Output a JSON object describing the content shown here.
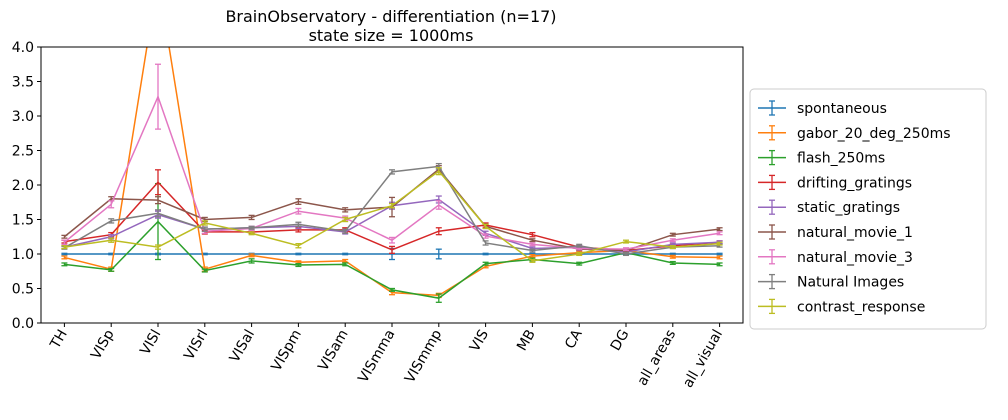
{
  "chart_data": {
    "type": "line",
    "title_line1": "BrainObservatory - differentiation (n=17)",
    "title_line2": "state size = 1000ms",
    "xlabel": "",
    "ylabel": "",
    "categories": [
      "TH",
      "VISp",
      "VISl",
      "VISrl",
      "VISal",
      "VISpm",
      "VISam",
      "VISmma",
      "VISmmp",
      "VIS",
      "MB",
      "CA",
      "DG",
      "all_areas",
      "all_visual"
    ],
    "ylim": [
      0,
      4
    ],
    "yticks": [
      "0.0",
      "0.5",
      "1.0",
      "1.5",
      "2.0",
      "2.5",
      "3.0",
      "3.5",
      "4.0"
    ],
    "grid": false,
    "legend_position": "right, outside",
    "series": [
      {
        "name": "spontaneous",
        "color": "#1f77b4",
        "values": [
          1.0,
          1.0,
          1.0,
          1.0,
          1.0,
          1.0,
          1.0,
          1.0,
          1.0,
          1.0,
          1.0,
          1.0,
          1.0,
          1.0,
          1.0
        ],
        "errors": [
          0.01,
          0.01,
          0.01,
          0.01,
          0.01,
          0.01,
          0.01,
          0.08,
          0.07,
          0.01,
          0.01,
          0.01,
          0.01,
          0.01,
          0.01
        ]
      },
      {
        "name": "gabor_20_deg_250ms",
        "color": "#ff7f0e",
        "values": [
          0.95,
          0.78,
          5.0,
          0.78,
          0.98,
          0.88,
          0.9,
          0.44,
          0.4,
          0.82,
          0.97,
          1.02,
          1.05,
          0.96,
          0.95
        ],
        "errors": [
          0.02,
          0.03,
          0.3,
          0.03,
          0.02,
          0.02,
          0.02,
          0.03,
          0.03,
          0.02,
          0.02,
          0.02,
          0.02,
          0.02,
          0.02
        ]
      },
      {
        "name": "flash_250ms",
        "color": "#2ca02c",
        "values": [
          0.85,
          0.77,
          1.47,
          0.76,
          0.9,
          0.84,
          0.85,
          0.48,
          0.36,
          0.86,
          0.92,
          0.86,
          1.02,
          0.87,
          0.85
        ],
        "errors": [
          0.02,
          0.02,
          0.55,
          0.02,
          0.03,
          0.02,
          0.02,
          0.02,
          0.06,
          0.02,
          0.02,
          0.02,
          0.02,
          0.02,
          0.02
        ]
      },
      {
        "name": "drifting_gratings",
        "color": "#d62728",
        "values": [
          1.18,
          1.28,
          2.04,
          1.32,
          1.32,
          1.35,
          1.35,
          1.06,
          1.33,
          1.42,
          1.28,
          1.1,
          1.05,
          1.12,
          1.17
        ],
        "errors": [
          0.02,
          0.03,
          0.18,
          0.03,
          0.02,
          0.03,
          0.03,
          0.05,
          0.05,
          0.03,
          0.03,
          0.02,
          0.02,
          0.02,
          0.02
        ]
      },
      {
        "name": "static_gratings",
        "color": "#9467bd",
        "values": [
          1.1,
          1.25,
          1.57,
          1.36,
          1.38,
          1.4,
          1.32,
          1.7,
          1.79,
          1.3,
          1.08,
          1.1,
          1.03,
          1.14,
          1.17
        ],
        "errors": [
          0.02,
          0.03,
          0.05,
          0.03,
          0.02,
          0.03,
          0.03,
          0.05,
          0.05,
          0.03,
          0.02,
          0.02,
          0.02,
          0.02,
          0.02
        ]
      },
      {
        "name": "natural_movie_1",
        "color": "#8c564b",
        "values": [
          1.25,
          1.8,
          1.78,
          1.5,
          1.53,
          1.76,
          1.64,
          1.68,
          2.23,
          1.4,
          1.2,
          1.07,
          1.05,
          1.28,
          1.36
        ],
        "errors": [
          0.02,
          0.03,
          0.05,
          0.03,
          0.03,
          0.04,
          0.03,
          0.14,
          0.05,
          0.03,
          0.02,
          0.02,
          0.02,
          0.02,
          0.02
        ]
      },
      {
        "name": "natural_movie_3",
        "color": "#e377c2",
        "values": [
          1.17,
          1.72,
          3.28,
          1.33,
          1.37,
          1.62,
          1.52,
          1.2,
          1.71,
          1.26,
          1.14,
          1.08,
          1.07,
          1.2,
          1.3
        ],
        "errors": [
          0.03,
          0.05,
          0.47,
          0.03,
          0.03,
          0.04,
          0.03,
          0.04,
          0.06,
          0.03,
          0.02,
          0.02,
          0.02,
          0.02,
          0.02
        ]
      },
      {
        "name": "Natural Images",
        "color": "#7f7f7f",
        "values": [
          1.09,
          1.48,
          1.59,
          1.36,
          1.38,
          1.43,
          1.33,
          2.19,
          2.27,
          1.16,
          1.05,
          1.12,
          1.0,
          1.1,
          1.12
        ],
        "errors": [
          0.02,
          0.03,
          0.05,
          0.03,
          0.02,
          0.03,
          0.03,
          0.03,
          0.04,
          0.03,
          0.02,
          0.02,
          0.02,
          0.02,
          0.02
        ]
      },
      {
        "name": "contrast_response",
        "color": "#bcbd22",
        "values": [
          1.1,
          1.2,
          1.1,
          1.45,
          1.3,
          1.12,
          1.5,
          1.7,
          2.2,
          1.4,
          0.9,
          1.0,
          1.18,
          1.1,
          1.15
        ],
        "errors": [
          0.02,
          0.03,
          0.03,
          0.03,
          0.02,
          0.03,
          0.03,
          0.03,
          0.05,
          0.03,
          0.02,
          0.02,
          0.02,
          0.02,
          0.02
        ]
      }
    ]
  }
}
